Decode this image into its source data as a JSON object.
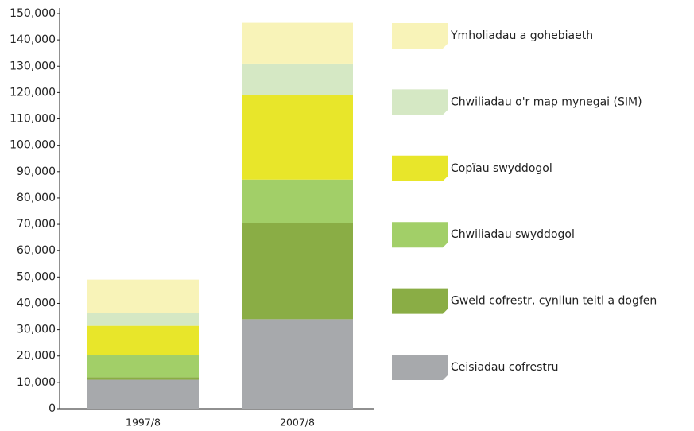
{
  "chart_data": {
    "type": "stacked-bar",
    "categories": [
      "1997/8",
      "2007/8"
    ],
    "series": [
      {
        "name": "Ceisiadau cofrestru",
        "color": "#a7a9ac",
        "values": [
          11000,
          34000
        ]
      },
      {
        "name": "Gweld cofrestr, cynllun teitl a dogfen",
        "color": "#8aad45",
        "values": [
          1000,
          36500
        ]
      },
      {
        "name": "Chwiliadau swyddogol",
        "color": "#a2cf68",
        "values": [
          8500,
          16500
        ]
      },
      {
        "name": "Copïau swyddogol",
        "color": "#e8e62a",
        "values": [
          11000,
          32000
        ]
      },
      {
        "name": "Chwiliadau o'r map mynegai (SIM)",
        "color": "#d5e8c4",
        "values": [
          5000,
          12000
        ]
      },
      {
        "name": "Ymholiadau a gohebiaeth",
        "color": "#f8f3b8",
        "values": [
          12500,
          15500
        ]
      }
    ],
    "ylim": [
      0,
      150000
    ],
    "yticks": [
      0,
      {
        "value": 10000,
        "label": "10,000"
      },
      {
        "value": 20000,
        "label": "20,000"
      },
      {
        "value": 30000,
        "label": "30,000"
      },
      {
        "value": 40000,
        "label": "40,000"
      },
      {
        "value": 50000,
        "label": "50,000"
      },
      {
        "value": 60000,
        "label": "60,000"
      },
      {
        "value": 70000,
        "label": "70,000"
      },
      {
        "value": 80000,
        "label": "80,000"
      },
      {
        "value": 90000,
        "label": "90,000"
      },
      {
        "value": 100000,
        "label": "100,000"
      },
      {
        "value": 110000,
        "label": "110,000"
      },
      {
        "value": 120000,
        "label": "120,000"
      },
      {
        "value": 130000,
        "label": "130,000"
      },
      {
        "value": 140000,
        "label": "140,000"
      },
      {
        "value": 150000,
        "label": "150,000"
      }
    ],
    "legend": "right"
  }
}
